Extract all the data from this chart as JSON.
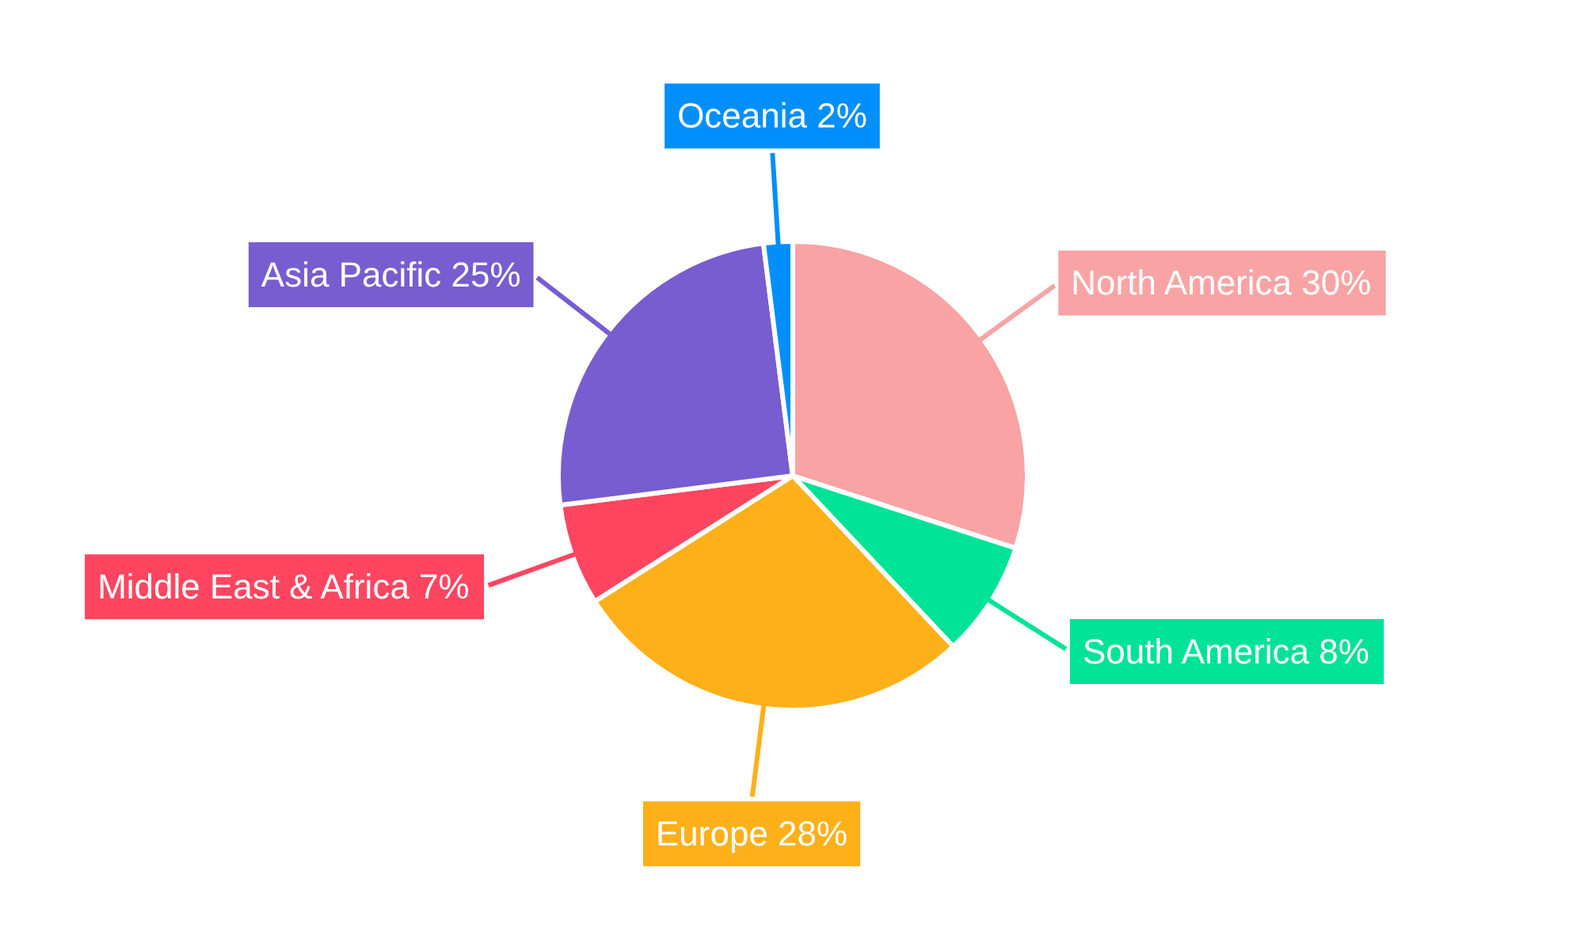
{
  "chart_data": {
    "type": "pie",
    "categories": [
      "North America",
      "South America",
      "Europe",
      "Middle East & Africa",
      "Asia Pacific",
      "Oceania"
    ],
    "values": [
      30,
      8,
      28,
      7,
      25,
      2
    ],
    "value_labels": [
      "30%",
      "8%",
      "28%",
      "7%",
      "25%",
      "2%"
    ],
    "colors": [
      "#f9a3a4",
      "#00e396",
      "#feb019",
      "#ff4560",
      "#775dd0",
      "#008ffb"
    ]
  }
}
